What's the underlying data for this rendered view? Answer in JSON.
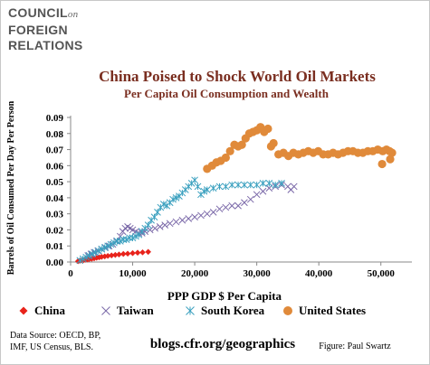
{
  "logo": {
    "line1": "COUNCIL",
    "line1_suffix": "on",
    "line2": "FOREIGN",
    "line3": "RELATIONS"
  },
  "footer": {
    "source_line1": "Data Source: OECD, BP,",
    "source_line2": "IMF, US Census, BLS.",
    "url": "blogs.cfr.org/geographics",
    "credit": "Figure: Paul Swartz"
  },
  "colors": {
    "title": "#7a2e20",
    "China": "#e8231b",
    "Taiwan": "#7a68a8",
    "South Korea": "#3aa0bf",
    "United States": "#e08a3a",
    "axis": "#888888"
  },
  "chart_data": {
    "type": "scatter",
    "title": "China Poised to Shock World Oil Markets",
    "subtitle": "Per Capita Oil Consumption and Wealth",
    "xlabel": "PPP GDP $ Per Capita",
    "ylabel": "Barrels of Oil Consumed Per Day Per Person",
    "xlim": [
      0,
      55000
    ],
    "ylim": [
      0,
      0.09
    ],
    "xticks": [
      0,
      10000,
      20000,
      30000,
      40000,
      50000
    ],
    "xtick_labels": [
      "0",
      "10,000",
      "20,000",
      "30,000",
      "40,000",
      "50,000"
    ],
    "yticks": [
      0,
      0.01,
      0.02,
      0.03,
      0.04,
      0.05,
      0.06,
      0.07,
      0.08,
      0.09
    ],
    "ytick_labels": [
      "0.00",
      "0.01",
      "0.02",
      "0.03",
      "0.04",
      "0.05",
      "0.06",
      "0.07",
      "0.08",
      "0.09"
    ],
    "grid": false,
    "legend_position": "bottom",
    "series": [
      {
        "name": "China",
        "marker": "diamond",
        "points": [
          [
            1200,
            0.0005
          ],
          [
            1500,
            0.0008
          ],
          [
            1800,
            0.001
          ],
          [
            2100,
            0.0012
          ],
          [
            2400,
            0.0014
          ],
          [
            2700,
            0.0016
          ],
          [
            3000,
            0.0018
          ],
          [
            3400,
            0.002
          ],
          [
            3800,
            0.0023
          ],
          [
            4200,
            0.0026
          ],
          [
            4600,
            0.0029
          ],
          [
            5000,
            0.0032
          ],
          [
            5500,
            0.0035
          ],
          [
            6000,
            0.0038
          ],
          [
            6600,
            0.0041
          ],
          [
            7200,
            0.0044
          ],
          [
            7800,
            0.0047
          ],
          [
            8500,
            0.005
          ],
          [
            9200,
            0.0052
          ],
          [
            10000,
            0.0055
          ],
          [
            10800,
            0.0058
          ],
          [
            11600,
            0.006
          ],
          [
            12500,
            0.0063
          ]
        ]
      },
      {
        "name": "Taiwan",
        "marker": "x",
        "points": [
          [
            2800,
            0.004
          ],
          [
            3300,
            0.005
          ],
          [
            3800,
            0.006
          ],
          [
            4400,
            0.007
          ],
          [
            5000,
            0.008
          ],
          [
            5600,
            0.009
          ],
          [
            6200,
            0.01
          ],
          [
            6800,
            0.011
          ],
          [
            7400,
            0.013
          ],
          [
            8000,
            0.016
          ],
          [
            8400,
            0.019
          ],
          [
            8800,
            0.021
          ],
          [
            9200,
            0.022
          ],
          [
            9600,
            0.021
          ],
          [
            10000,
            0.02
          ],
          [
            10500,
            0.019
          ],
          [
            11000,
            0.018
          ],
          [
            11500,
            0.018
          ],
          [
            12000,
            0.019
          ],
          [
            12800,
            0.02
          ],
          [
            13600,
            0.021
          ],
          [
            14400,
            0.022
          ],
          [
            15200,
            0.023
          ],
          [
            16000,
            0.024
          ],
          [
            17000,
            0.025
          ],
          [
            18000,
            0.026
          ],
          [
            19000,
            0.027
          ],
          [
            20000,
            0.028
          ],
          [
            21000,
            0.029
          ],
          [
            22000,
            0.03
          ],
          [
            23000,
            0.031
          ],
          [
            24000,
            0.033
          ],
          [
            25000,
            0.034
          ],
          [
            26000,
            0.035
          ],
          [
            27000,
            0.035
          ],
          [
            28000,
            0.037
          ],
          [
            29000,
            0.039
          ],
          [
            30000,
            0.042
          ],
          [
            31000,
            0.044
          ],
          [
            32000,
            0.046
          ],
          [
            33000,
            0.047
          ],
          [
            34000,
            0.048
          ],
          [
            35000,
            0.047
          ],
          [
            35500,
            0.045
          ],
          [
            36000,
            0.047
          ]
        ]
      },
      {
        "name": "South Korea",
        "marker": "asterisk",
        "points": [
          [
            1500,
            0.001
          ],
          [
            2000,
            0.002
          ],
          [
            2500,
            0.003
          ],
          [
            3000,
            0.004
          ],
          [
            3500,
            0.005
          ],
          [
            4000,
            0.006
          ],
          [
            4500,
            0.007
          ],
          [
            5000,
            0.008
          ],
          [
            5500,
            0.009
          ],
          [
            6000,
            0.01
          ],
          [
            6500,
            0.011
          ],
          [
            7000,
            0.012
          ],
          [
            7500,
            0.013
          ],
          [
            8000,
            0.013
          ],
          [
            8500,
            0.014
          ],
          [
            9000,
            0.014
          ],
          [
            9500,
            0.015
          ],
          [
            10000,
            0.015
          ],
          [
            10500,
            0.016
          ],
          [
            11000,
            0.017
          ],
          [
            11500,
            0.019
          ],
          [
            12000,
            0.021
          ],
          [
            12500,
            0.023
          ],
          [
            13000,
            0.026
          ],
          [
            13500,
            0.028
          ],
          [
            14000,
            0.031
          ],
          [
            14500,
            0.034
          ],
          [
            15000,
            0.036
          ],
          [
            15500,
            0.035
          ],
          [
            16000,
            0.037
          ],
          [
            16500,
            0.039
          ],
          [
            17000,
            0.04
          ],
          [
            17500,
            0.041
          ],
          [
            18000,
            0.043
          ],
          [
            18500,
            0.045
          ],
          [
            19000,
            0.047
          ],
          [
            19500,
            0.049
          ],
          [
            20000,
            0.051
          ],
          [
            20500,
            0.047
          ],
          [
            21000,
            0.042
          ],
          [
            21500,
            0.044
          ],
          [
            22000,
            0.045
          ],
          [
            23000,
            0.046
          ],
          [
            24000,
            0.047
          ],
          [
            25000,
            0.047
          ],
          [
            26000,
            0.048
          ],
          [
            27000,
            0.048
          ],
          [
            28000,
            0.048
          ],
          [
            29000,
            0.048
          ],
          [
            30000,
            0.048
          ],
          [
            31000,
            0.049
          ],
          [
            32000,
            0.049
          ],
          [
            33000,
            0.048
          ],
          [
            34000,
            0.049
          ]
        ]
      },
      {
        "name": "United States",
        "marker": "circle",
        "points": [
          [
            22000,
            0.058
          ],
          [
            22800,
            0.06
          ],
          [
            23500,
            0.062
          ],
          [
            24200,
            0.063
          ],
          [
            25000,
            0.065
          ],
          [
            25700,
            0.069
          ],
          [
            26400,
            0.073
          ],
          [
            27000,
            0.072
          ],
          [
            27600,
            0.073
          ],
          [
            28200,
            0.077
          ],
          [
            28800,
            0.08
          ],
          [
            29400,
            0.081
          ],
          [
            30000,
            0.082
          ],
          [
            30600,
            0.084
          ],
          [
            31200,
            0.081
          ],
          [
            31800,
            0.083
          ],
          [
            32300,
            0.072
          ],
          [
            32700,
            0.074
          ],
          [
            33500,
            0.067
          ],
          [
            34300,
            0.068
          ],
          [
            35100,
            0.066
          ],
          [
            35900,
            0.068
          ],
          [
            36700,
            0.067
          ],
          [
            37500,
            0.068
          ],
          [
            38300,
            0.069
          ],
          [
            39100,
            0.068
          ],
          [
            39900,
            0.069
          ],
          [
            40700,
            0.067
          ],
          [
            41500,
            0.067
          ],
          [
            42300,
            0.068
          ],
          [
            43100,
            0.067
          ],
          [
            43900,
            0.068
          ],
          [
            44700,
            0.069
          ],
          [
            45500,
            0.069
          ],
          [
            46300,
            0.068
          ],
          [
            47100,
            0.068
          ],
          [
            47900,
            0.069
          ],
          [
            48700,
            0.069
          ],
          [
            49500,
            0.07
          ],
          [
            50300,
            0.069
          ],
          [
            50900,
            0.07
          ],
          [
            51400,
            0.069
          ],
          [
            51800,
            0.068
          ],
          [
            50200,
            0.061
          ],
          [
            51500,
            0.064
          ]
        ]
      }
    ]
  }
}
